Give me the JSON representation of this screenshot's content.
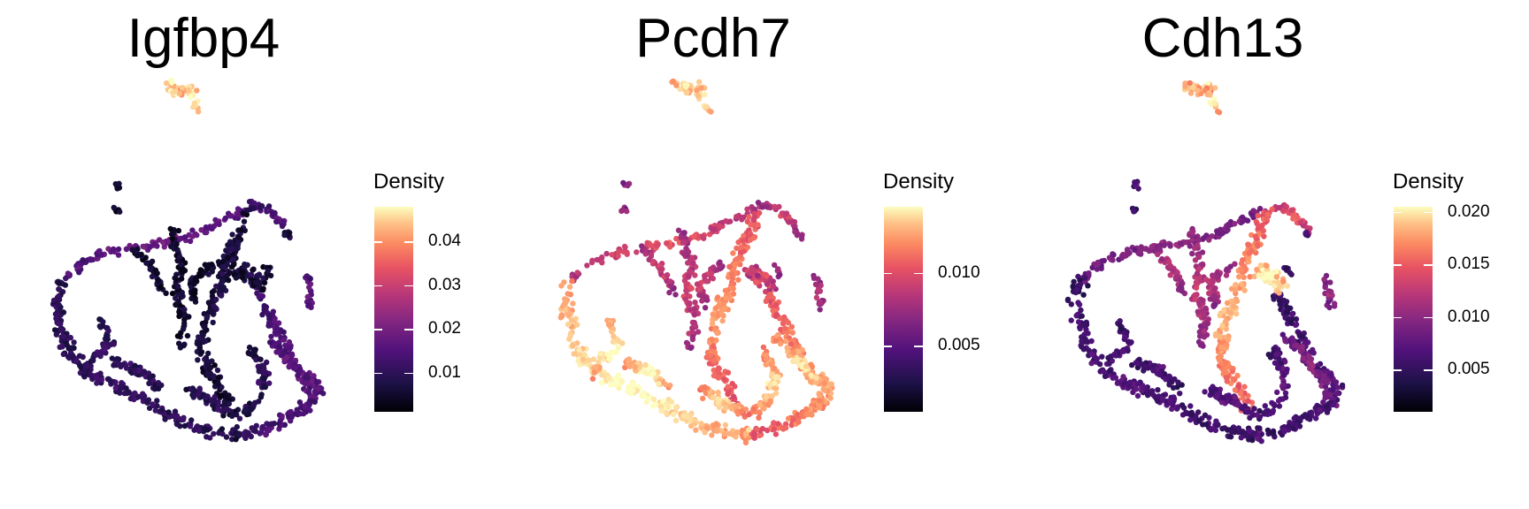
{
  "chart_data": [
    {
      "type": "scatter",
      "title": "Igfbp4",
      "legend_title": "Density",
      "legend_ticks": [
        "0.01",
        "0.02",
        "0.03",
        "0.04"
      ],
      "legend_tick_values": [
        0.01,
        0.02,
        0.03,
        0.04
      ],
      "color_range": [
        0.001,
        0.048
      ],
      "colormap": "magma",
      "hotspots": [
        {
          "region": "top-island",
          "intensity": 0.95
        },
        {
          "region": "left-arm",
          "intensity": 0.25
        },
        {
          "region": "bottom-right",
          "intensity": 0.22
        }
      ]
    },
    {
      "type": "scatter",
      "title": "Pcdh7",
      "legend_title": "Density",
      "legend_ticks": [
        "0.005",
        "0.010"
      ],
      "legend_tick_values": [
        0.005,
        0.01
      ],
      "color_range": [
        0.0005,
        0.0145
      ],
      "colormap": "magma",
      "hotspots": [
        {
          "region": "top-island",
          "intensity": 0.9
        },
        {
          "region": "bottom-left",
          "intensity": 0.95
        },
        {
          "region": "bottom-center",
          "intensity": 0.85
        },
        {
          "region": "right-mid",
          "intensity": 0.8
        },
        {
          "region": "left-arm",
          "intensity": 0.6
        }
      ]
    },
    {
      "type": "scatter",
      "title": "Cdh13",
      "legend_title": "Density",
      "legend_ticks": [
        "0.005",
        "0.010",
        "0.015",
        "0.020"
      ],
      "legend_tick_values": [
        0.005,
        0.01,
        0.015,
        0.02
      ],
      "color_range": [
        0.001,
        0.0205
      ],
      "colormap": "magma",
      "hotspots": [
        {
          "region": "top-island",
          "intensity": 0.9
        },
        {
          "region": "center-stalk",
          "intensity": 0.85
        },
        {
          "region": "center-blob",
          "intensity": 0.95
        },
        {
          "region": "left-arm",
          "intensity": 0.3
        }
      ]
    }
  ]
}
